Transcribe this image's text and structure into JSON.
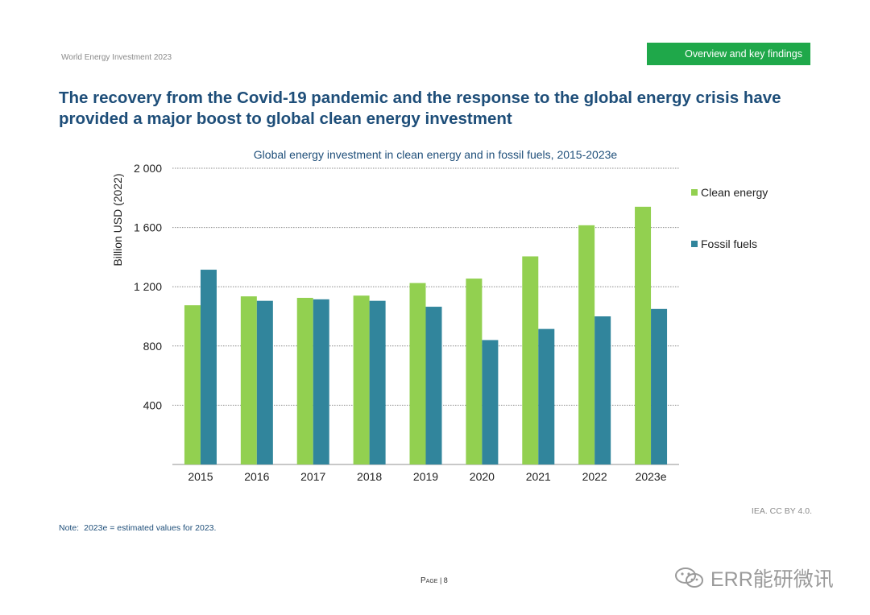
{
  "header": {
    "report_title": "World Energy Investment 2023",
    "section_tag": "Overview and key findings"
  },
  "headline": {
    "line1": "The recovery from the Covid-19 pandemic and the response to the global energy crisis have",
    "line2": "provided a major boost to global clean energy investment"
  },
  "chart_data": {
    "type": "bar",
    "title": "Global energy investment in clean energy and in fossil fuels, 2015-2023e",
    "ylabel": "Billion USD (2022)",
    "xlabel": "",
    "ylim": [
      0,
      2000
    ],
    "yticks": [
      400,
      800,
      1200,
      1600,
      2000
    ],
    "ytick_labels": [
      "400",
      "800",
      "1 200",
      "1 600",
      "2 000"
    ],
    "grid": true,
    "legend_position": "right",
    "categories": [
      "2015",
      "2016",
      "2017",
      "2018",
      "2019",
      "2020",
      "2021",
      "2022",
      "2023e"
    ],
    "series": [
      {
        "name": "Clean energy",
        "color": "#92d050",
        "values": [
          1075,
          1135,
          1125,
          1140,
          1225,
          1255,
          1405,
          1615,
          1740
        ]
      },
      {
        "name": "Fossil fuels",
        "color": "#31859c",
        "values": [
          1315,
          1105,
          1115,
          1105,
          1065,
          840,
          915,
          1000,
          1050
        ]
      }
    ]
  },
  "footer": {
    "note_label": "Note:",
    "note_text": "2023e = estimated values for 2023.",
    "credit": "IEA. CC BY 4.0.",
    "page_label": "Page",
    "page_number": "| 8"
  },
  "watermark": {
    "text": "ERR能研微讯",
    "icon": "wechat-icon"
  }
}
